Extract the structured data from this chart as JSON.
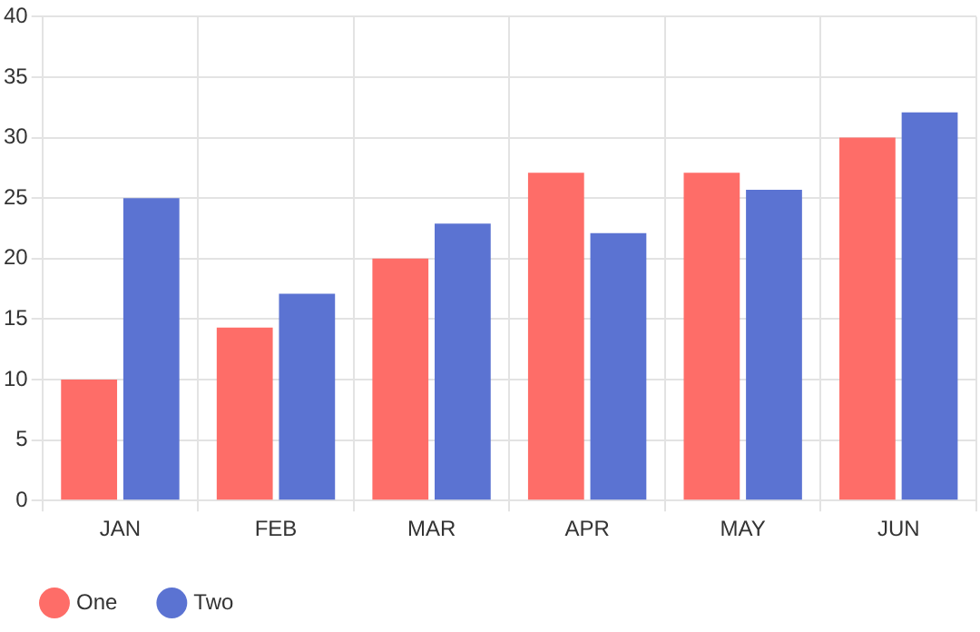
{
  "chart_data": {
    "type": "bar",
    "categories": [
      "JAN",
      "FEB",
      "MAR",
      "APR",
      "MAY",
      "JUN"
    ],
    "series": [
      {
        "name": "One",
        "color": "#fe6d68",
        "values": [
          10,
          14.3,
          20,
          27.1,
          27.1,
          30
        ]
      },
      {
        "name": "Two",
        "color": "#5b73d2",
        "values": [
          25,
          17.1,
          22.9,
          22.1,
          25.7,
          32.1
        ]
      }
    ],
    "ylim": [
      0,
      40
    ],
    "yticks": [
      0,
      5,
      10,
      15,
      20,
      25,
      30,
      35,
      40
    ],
    "grid": true,
    "legend": "bottom left"
  }
}
